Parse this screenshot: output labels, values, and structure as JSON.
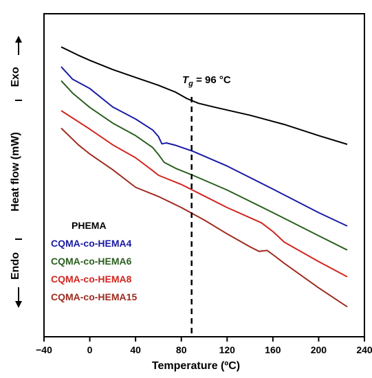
{
  "chart_data": {
    "type": "line",
    "xlabel": "Temperature (ºC)",
    "ylabel": "Heat flow (mW)",
    "y_top_label": "Exo",
    "y_bottom_label": "Endo",
    "xlim": [
      -40,
      240
    ],
    "xticks": [
      -40,
      0,
      40,
      80,
      120,
      160,
      200,
      240
    ],
    "yticks": "none",
    "grid": false,
    "legend_position": "lower-left",
    "annotation": {
      "symbol": "T",
      "subscript": "g",
      "value_text": " = 96 °C",
      "x": 89
    },
    "series": [
      {
        "name": "PHEMA",
        "color": "#000000",
        "points": [
          [
            -25,
            4.78
          ],
          [
            -10,
            4.6
          ],
          [
            0,
            4.49
          ],
          [
            20,
            4.29
          ],
          [
            40,
            4.12
          ],
          [
            60,
            3.95
          ],
          [
            75,
            3.8
          ],
          [
            85,
            3.66
          ],
          [
            95,
            3.56
          ],
          [
            110,
            3.47
          ],
          [
            140,
            3.3
          ],
          [
            170,
            3.1
          ],
          [
            200,
            2.86
          ],
          [
            225,
            2.67
          ]
        ]
      },
      {
        "name": "CQMA-co-HEMA4",
        "color": "#1a1aa6",
        "points": [
          [
            -25,
            4.35
          ],
          [
            -15,
            4.08
          ],
          [
            0,
            3.88
          ],
          [
            20,
            3.48
          ],
          [
            40,
            3.22
          ],
          [
            55,
            2.98
          ],
          [
            60,
            2.84
          ],
          [
            63,
            2.68
          ],
          [
            67,
            2.7
          ],
          [
            75,
            2.65
          ],
          [
            90,
            2.52
          ],
          [
            120,
            2.2
          ],
          [
            160,
            1.7
          ],
          [
            200,
            1.19
          ],
          [
            225,
            0.9
          ]
        ]
      },
      {
        "name": "CQMA-co-HEMA6",
        "color": "#2a5e1e",
        "points": [
          [
            -25,
            4.05
          ],
          [
            -15,
            3.78
          ],
          [
            0,
            3.47
          ],
          [
            20,
            3.13
          ],
          [
            40,
            2.86
          ],
          [
            55,
            2.6
          ],
          [
            60,
            2.45
          ],
          [
            65,
            2.28
          ],
          [
            75,
            2.15
          ],
          [
            90,
            2.0
          ],
          [
            120,
            1.68
          ],
          [
            160,
            1.19
          ],
          [
            200,
            0.69
          ],
          [
            225,
            0.38
          ]
        ]
      },
      {
        "name": "CQMA-co-HEMA8",
        "color": "#d2251e",
        "points": [
          [
            -25,
            3.4
          ],
          [
            0,
            3.0
          ],
          [
            20,
            2.66
          ],
          [
            40,
            2.38
          ],
          [
            55,
            2.1
          ],
          [
            60,
            2.0
          ],
          [
            80,
            1.8
          ],
          [
            100,
            1.55
          ],
          [
            120,
            1.3
          ],
          [
            140,
            1.08
          ],
          [
            150,
            0.97
          ],
          [
            160,
            0.78
          ],
          [
            170,
            0.55
          ],
          [
            200,
            0.13
          ],
          [
            225,
            -0.2
          ]
        ]
      },
      {
        "name": "CQMA-co-HEMA15",
        "color": "#9e2a1e",
        "points": [
          [
            -25,
            3.02
          ],
          [
            -10,
            2.66
          ],
          [
            0,
            2.46
          ],
          [
            20,
            2.12
          ],
          [
            40,
            1.74
          ],
          [
            60,
            1.54
          ],
          [
            80,
            1.3
          ],
          [
            100,
            1.03
          ],
          [
            120,
            0.73
          ],
          [
            140,
            0.45
          ],
          [
            148,
            0.35
          ],
          [
            155,
            0.37
          ],
          [
            160,
            0.28
          ],
          [
            170,
            0.09
          ],
          [
            200,
            -0.44
          ],
          [
            225,
            -0.85
          ]
        ]
      }
    ]
  }
}
